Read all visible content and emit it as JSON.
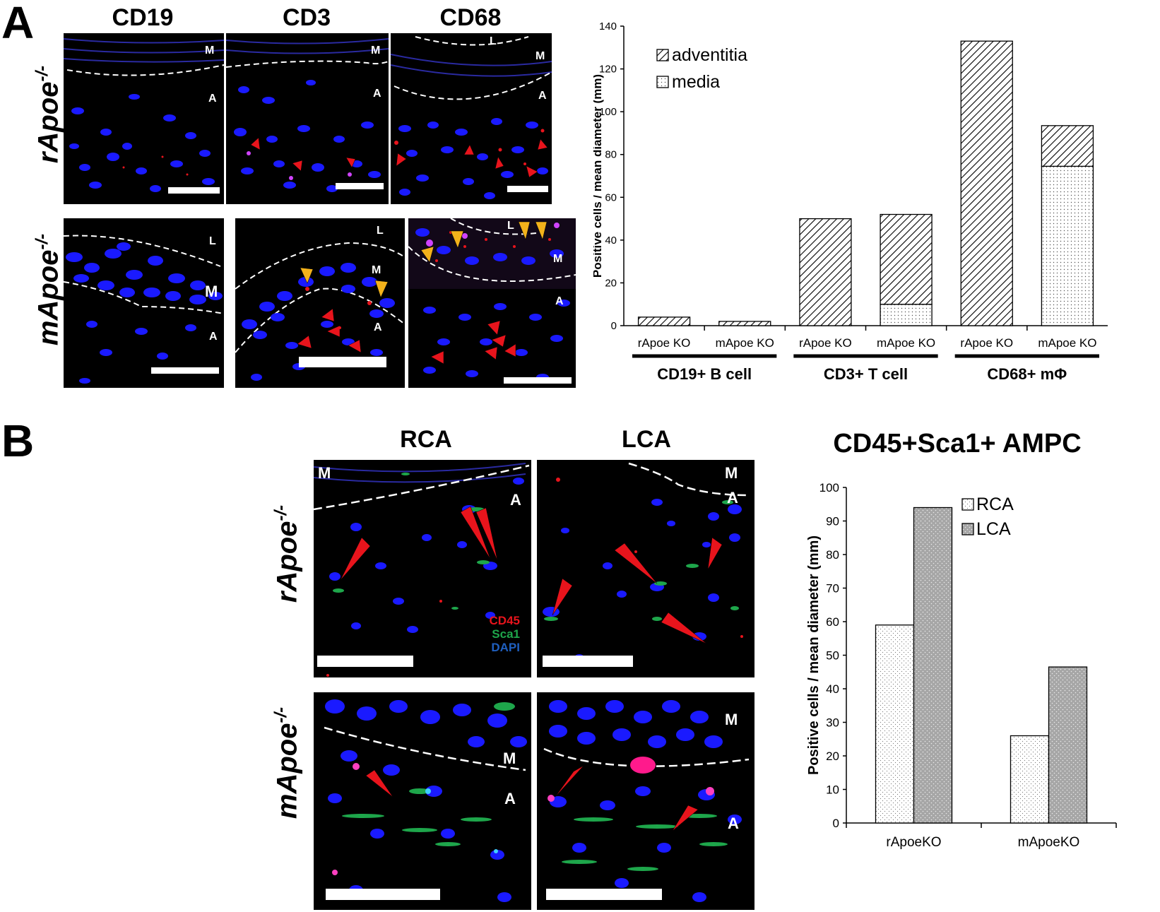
{
  "panels": {
    "a": {
      "letter": "A",
      "columns": [
        "CD19",
        "CD3",
        "CD68"
      ],
      "rows": [
        {
          "name": "rApoe",
          "sup": "-/-"
        },
        {
          "name": "mApoe",
          "sup": "-/-"
        }
      ],
      "image_labels": {
        "r0c0": [
          "M",
          "A"
        ],
        "r0c1": [
          "M",
          "A"
        ],
        "r0c2": [
          "L",
          "M",
          "A"
        ],
        "r1c0": [
          "L",
          "M",
          "A"
        ],
        "r1c1": [
          "L",
          "M",
          "A"
        ],
        "r1c2": [
          "L",
          "M",
          "A"
        ]
      }
    },
    "b": {
      "letter": "B",
      "columns": [
        "RCA",
        "LCA"
      ],
      "rows": [
        {
          "name": "rApoe",
          "sup": "-/-"
        },
        {
          "name": "mApoe",
          "sup": "-/-"
        }
      ],
      "image_labels": {
        "r0c0": [
          "M",
          "A"
        ],
        "r0c1": [
          "M",
          "A"
        ],
        "r1c0": [
          "M",
          "A"
        ],
        "r1c1": [
          "M",
          "A"
        ]
      },
      "stain_legend": [
        {
          "text": "CD45",
          "color": "#e8141c"
        },
        {
          "text": "Sca1",
          "color": "#1ea64b"
        },
        {
          "text": "DAPI",
          "color": "#1f5fbf"
        }
      ]
    }
  },
  "colors": {
    "nuclei": "#1a1aff",
    "dashed_line": "#ffffff",
    "red_arrow": "#e8141c",
    "yellow_arrow": "#f3b21b",
    "lca_bar": "#a6a6a6"
  },
  "chart_data": [
    {
      "type": "bar",
      "stacked": true,
      "title": "",
      "ylabel": "Positive cells / mean diameter (mm)",
      "ylim": [
        0,
        140
      ],
      "yticks": [
        0,
        20,
        40,
        60,
        80,
        100,
        120,
        140
      ],
      "categories": [
        "rApoe KO",
        "mApoe KO",
        "rApoe KO",
        "mApoe KO",
        "rApoe KO",
        "mApoe KO"
      ],
      "groups": [
        {
          "label": "CD19+ B cell",
          "categories": [
            "rApoe KO",
            "mApoe KO"
          ]
        },
        {
          "label": "CD3+ T cell",
          "categories": [
            "rApoe KO",
            "mApoe KO"
          ]
        },
        {
          "label": "CD68+ mΦ",
          "categories": [
            "rApoe KO",
            "mApoe KO"
          ]
        }
      ],
      "series": [
        {
          "name": "media",
          "pattern": "dots",
          "values": [
            0,
            0,
            0,
            10,
            0,
            74.5
          ]
        },
        {
          "name": "adventitia",
          "pattern": "hatch",
          "values": [
            4,
            2,
            50,
            42,
            133,
            19
          ]
        }
      ],
      "legend": [
        "adventitia",
        "media"
      ],
      "legend_position": "top-left",
      "grid": false
    },
    {
      "type": "bar",
      "title": "CD45+Sca1+ AMPC",
      "ylabel": "Positive cells / mean diameter (mm)",
      "ylim": [
        0,
        100
      ],
      "yticks": [
        0,
        10,
        20,
        30,
        40,
        50,
        60,
        70,
        80,
        90,
        100
      ],
      "categories": [
        "rApoeKO",
        "mApoeKO"
      ],
      "series": [
        {
          "name": "RCA",
          "pattern": "light-dots",
          "values": [
            59,
            26
          ]
        },
        {
          "name": "LCA",
          "pattern": "grey-dots",
          "values": [
            94,
            46.5
          ]
        }
      ],
      "legend_position": "top-right",
      "grid": false
    }
  ]
}
